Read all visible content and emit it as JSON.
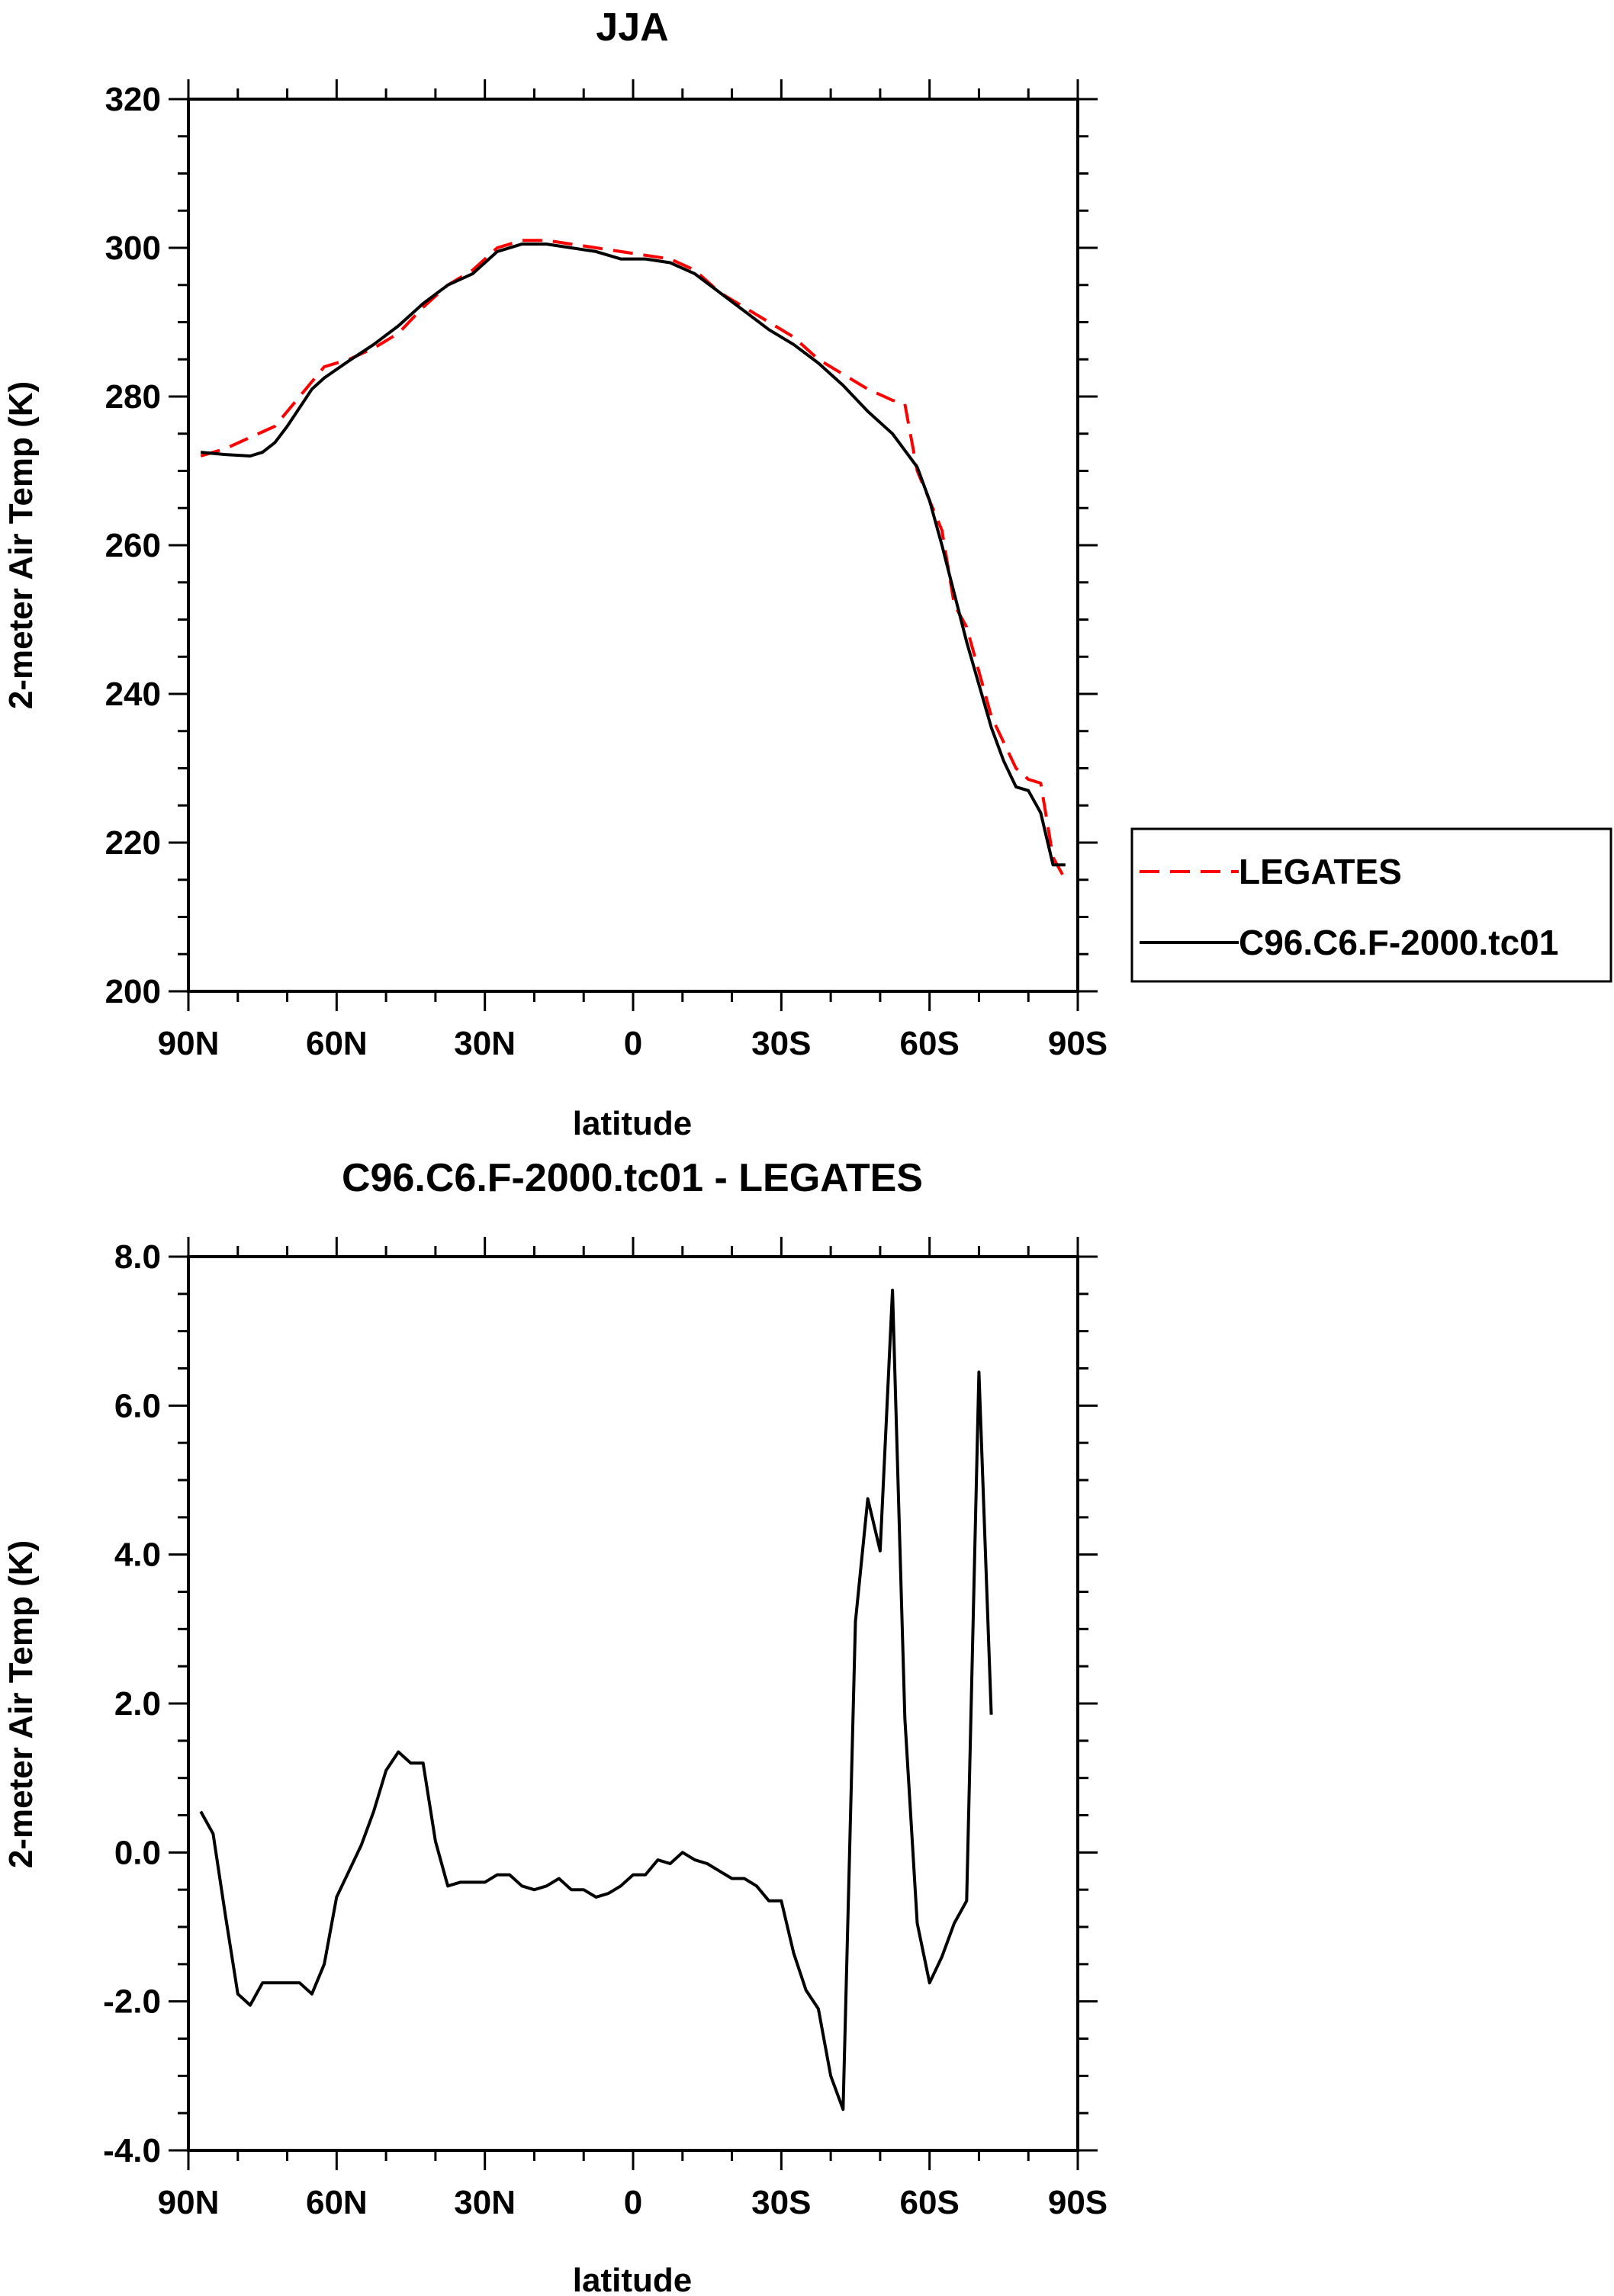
{
  "chart_data": [
    {
      "type": "line",
      "title": "JJA",
      "xlabel": "latitude",
      "ylabel": "2-meter Air Temp (K)",
      "xlim": [
        -90,
        90
      ],
      "ylim": [
        200,
        320
      ],
      "xticks": [
        -90,
        -60,
        -30,
        0,
        30,
        60,
        90
      ],
      "xtick_labels": [
        "90N",
        "60N",
        "30N",
        "0",
        "30S",
        "60S",
        "90S"
      ],
      "yticks": [
        200,
        220,
        240,
        260,
        280,
        300,
        320
      ],
      "ytick_labels": [
        "200",
        "220",
        "240",
        "260",
        "280",
        "300",
        "320"
      ],
      "legend": {
        "placement": "outside-right",
        "entries": [
          "LEGATES",
          "C96.C6.F-2000.tc01"
        ]
      },
      "series": [
        {
          "name": "LEGATES",
          "color": "#ff0000",
          "dash": "dashed",
          "x": [
            -87.5,
            -82.5,
            -77.5,
            -72.5,
            -67.5,
            -62.5,
            -57.5,
            -52.5,
            -47.5,
            -42.5,
            -37.5,
            -32.5,
            -27.5,
            -22.5,
            -17.5,
            -12.5,
            -7.5,
            -2.5,
            2.5,
            7.5,
            12.5,
            17.5,
            22.5,
            27.5,
            32.5,
            37.5,
            42.5,
            47.5,
            52.5,
            55,
            57.5,
            62.5,
            65,
            67.5,
            72.5,
            77.5,
            80,
            82.5,
            85,
            87.5
          ],
          "y": [
            272,
            273,
            274.5,
            276,
            280,
            284,
            285,
            286.5,
            288.5,
            292,
            295,
            297,
            300,
            301,
            301,
            300.5,
            300,
            299.5,
            299,
            298.5,
            297,
            294,
            292,
            290,
            288,
            285,
            283,
            281,
            279.5,
            279,
            270,
            262,
            252,
            249,
            237,
            230,
            228.5,
            228,
            218,
            215
          ]
        },
        {
          "name": "C96.C6.F-2000.tc01",
          "color": "#000000",
          "dash": "solid",
          "x": [
            -87.5,
            -82.5,
            -77.5,
            -75,
            -72.5,
            -70,
            -67.5,
            -65,
            -62.5,
            -57.5,
            -52.5,
            -47.5,
            -42.5,
            -37.5,
            -32.5,
            -27.5,
            -22.5,
            -17.5,
            -12.5,
            -7.5,
            -2.5,
            2.5,
            7.5,
            12.5,
            17.5,
            22.5,
            27.5,
            32.5,
            37.5,
            42.5,
            47.5,
            52.5,
            57.5,
            60,
            62.5,
            65,
            67.5,
            72.5,
            75,
            77.5,
            80,
            82.5,
            85,
            87.5
          ],
          "y": [
            272.5,
            272.2,
            272,
            272.5,
            273.8,
            276,
            278.5,
            281,
            282.5,
            284.8,
            287,
            289.5,
            292.5,
            295,
            296.5,
            299.5,
            300.5,
            300.5,
            300,
            299.5,
            298.5,
            298.5,
            298,
            296.5,
            294,
            291.5,
            289,
            287,
            284.5,
            281.5,
            278,
            275,
            270.5,
            266,
            260,
            253.5,
            247,
            235.5,
            231,
            227.5,
            227,
            224,
            217,
            217
          ]
        }
      ]
    },
    {
      "type": "line",
      "title": "C96.C6.F-2000.tc01 - LEGATES",
      "xlabel": "latitude",
      "ylabel": "2-meter Air Temp (K)",
      "xlim": [
        -90,
        90
      ],
      "ylim": [
        -4,
        8
      ],
      "xticks": [
        -90,
        -60,
        -30,
        0,
        30,
        60,
        90
      ],
      "xtick_labels": [
        "90N",
        "60N",
        "30N",
        "0",
        "30S",
        "60S",
        "90S"
      ],
      "yticks": [
        -4,
        -2,
        0,
        2,
        4,
        6,
        8
      ],
      "ytick_labels": [
        "-4.0",
        "-2.0",
        "0.0",
        "2.0",
        "4.0",
        "6.0",
        "8.0"
      ],
      "series": [
        {
          "name": "C96.C6.F-2000.tc01 - LEGATES",
          "color": "#000000",
          "dash": "solid",
          "x": [
            -87.5,
            -85,
            -82.5,
            -80,
            -77.5,
            -75,
            -72.5,
            -70,
            -67.5,
            -65,
            -62.5,
            -60,
            -57.5,
            -55,
            -52.5,
            -50,
            -47.5,
            -45,
            -42.5,
            -40,
            -37.5,
            -35,
            -32.5,
            -30,
            -27.5,
            -25,
            -22.5,
            -20,
            -17.5,
            -15,
            -12.5,
            -10,
            -7.5,
            -5,
            -2.5,
            0,
            2.5,
            5,
            7.5,
            10,
            12.5,
            15,
            17.5,
            20,
            22.5,
            25,
            27.5,
            30,
            32.5,
            35,
            37.5,
            40,
            42.5,
            45,
            47.5,
            50,
            52.5,
            55,
            57.5,
            60,
            62.5,
            65,
            67.5,
            70,
            72.5,
            75,
            77.5,
            80,
            82.5,
            85,
            87.5
          ],
          "y": [
            0.55,
            0.25,
            -0.85,
            -1.9,
            -2.05,
            -1.75,
            -1.75,
            -1.75,
            -1.75,
            -1.9,
            -1.5,
            -0.6,
            -0.25,
            0.1,
            0.55,
            1.1,
            1.35,
            1.2,
            1.2,
            0.15,
            -0.45,
            -0.4,
            -0.4,
            -0.4,
            -0.3,
            -0.3,
            -0.45,
            -0.5,
            -0.45,
            -0.35,
            -0.5,
            -0.5,
            -0.6,
            -0.55,
            -0.45,
            -0.3,
            -0.3,
            -0.1,
            -0.15,
            0,
            -0.1,
            -0.15,
            -0.25,
            -0.35,
            -0.35,
            -0.45,
            -0.65,
            -0.65,
            -1.35,
            -1.85,
            -2.1,
            -3.0,
            -3.45,
            3.1,
            4.75,
            4.05,
            7.55,
            1.8,
            -0.95,
            -1.75,
            -1.4,
            -0.95,
            -0.65,
            6.45,
            1.85,
            null,
            null,
            null,
            null,
            null,
            null
          ]
        }
      ]
    }
  ]
}
